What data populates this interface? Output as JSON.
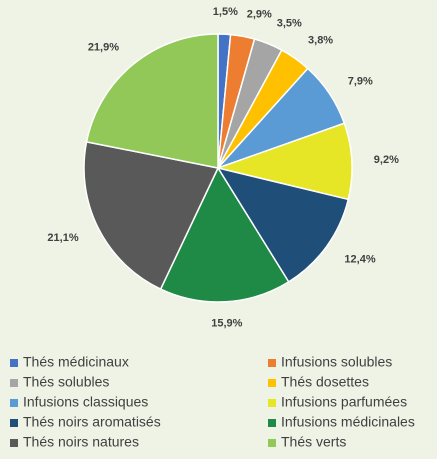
{
  "chart_data": {
    "type": "pie",
    "categories": [
      "Thés médicinaux",
      "Infusions solubles",
      "Thés solubles",
      "Thés dosettes",
      "Infusions classiques",
      "Infusions parfumées",
      "Thés noirs aromatisés",
      "Infusions médicinales",
      "Thés noirs natures",
      "Thés verts"
    ],
    "values": [
      1.5,
      2.9,
      3.5,
      3.8,
      7.9,
      9.2,
      12.4,
      15.9,
      21.1,
      21.9
    ],
    "value_labels": [
      "1,5%",
      "2,9%",
      "3,5%",
      "3,8%",
      "7,9%",
      "9,2%",
      "12,4%",
      "15,9%",
      "21,1%",
      "21,9%"
    ],
    "colors": [
      "#4472c4",
      "#ed7d31",
      "#a5a5a5",
      "#ffc000",
      "#5b9bd5",
      "#e6e627",
      "#1f4e79",
      "#1e8a45",
      "#595959",
      "#92c857"
    ],
    "legend": "bottom"
  }
}
